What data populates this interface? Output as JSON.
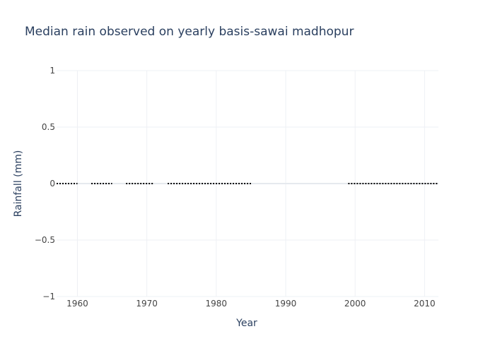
{
  "chart_data": {
    "type": "line",
    "title": "Median rain observed on yearly basis-sawai madhopur",
    "xlabel": "Year",
    "ylabel": "Rainfall (mm)",
    "xlim": [
      1957,
      2012
    ],
    "ylim": [
      -1,
      1
    ],
    "x_ticks": [
      1960,
      1970,
      1980,
      1990,
      2000,
      2010
    ],
    "y_ticks": [
      1,
      0.5,
      0,
      -0.5,
      -1
    ],
    "y_tick_labels": [
      "1",
      "0.5",
      "0",
      "−0.5",
      "−1"
    ],
    "grid": true,
    "line_style": "dotted",
    "series": [
      {
        "segments": [
          {
            "x": [
              1957,
              1958,
              1959,
              1960
            ],
            "y": [
              0,
              0,
              0,
              0
            ]
          },
          {
            "x": [
              1962,
              1963,
              1964,
              1965
            ],
            "y": [
              0,
              0,
              0,
              0
            ]
          },
          {
            "x": [
              1967,
              1968,
              1969,
              1970,
              1971
            ],
            "y": [
              0,
              0,
              0,
              0,
              0
            ]
          },
          {
            "x": [
              1973,
              1974,
              1975,
              1976,
              1977,
              1978,
              1979,
              1980,
              1981,
              1982,
              1983,
              1984,
              1985
            ],
            "y": [
              0,
              0,
              0,
              0,
              0,
              0,
              0,
              0,
              0,
              0,
              0,
              0,
              0
            ]
          },
          {
            "x": [
              1999,
              2000,
              2001,
              2002,
              2003,
              2004,
              2005,
              2006,
              2007,
              2008,
              2009,
              2010,
              2011,
              2012
            ],
            "y": [
              0,
              0,
              0,
              0,
              0,
              0,
              0,
              0,
              0,
              0,
              0,
              0,
              0,
              0
            ]
          }
        ]
      }
    ],
    "colors": {
      "line": "#000000",
      "grid": "#eef0f4",
      "zeroline": "#e6e9ee",
      "title": "#2a3f5f",
      "tick": "#444444"
    }
  }
}
